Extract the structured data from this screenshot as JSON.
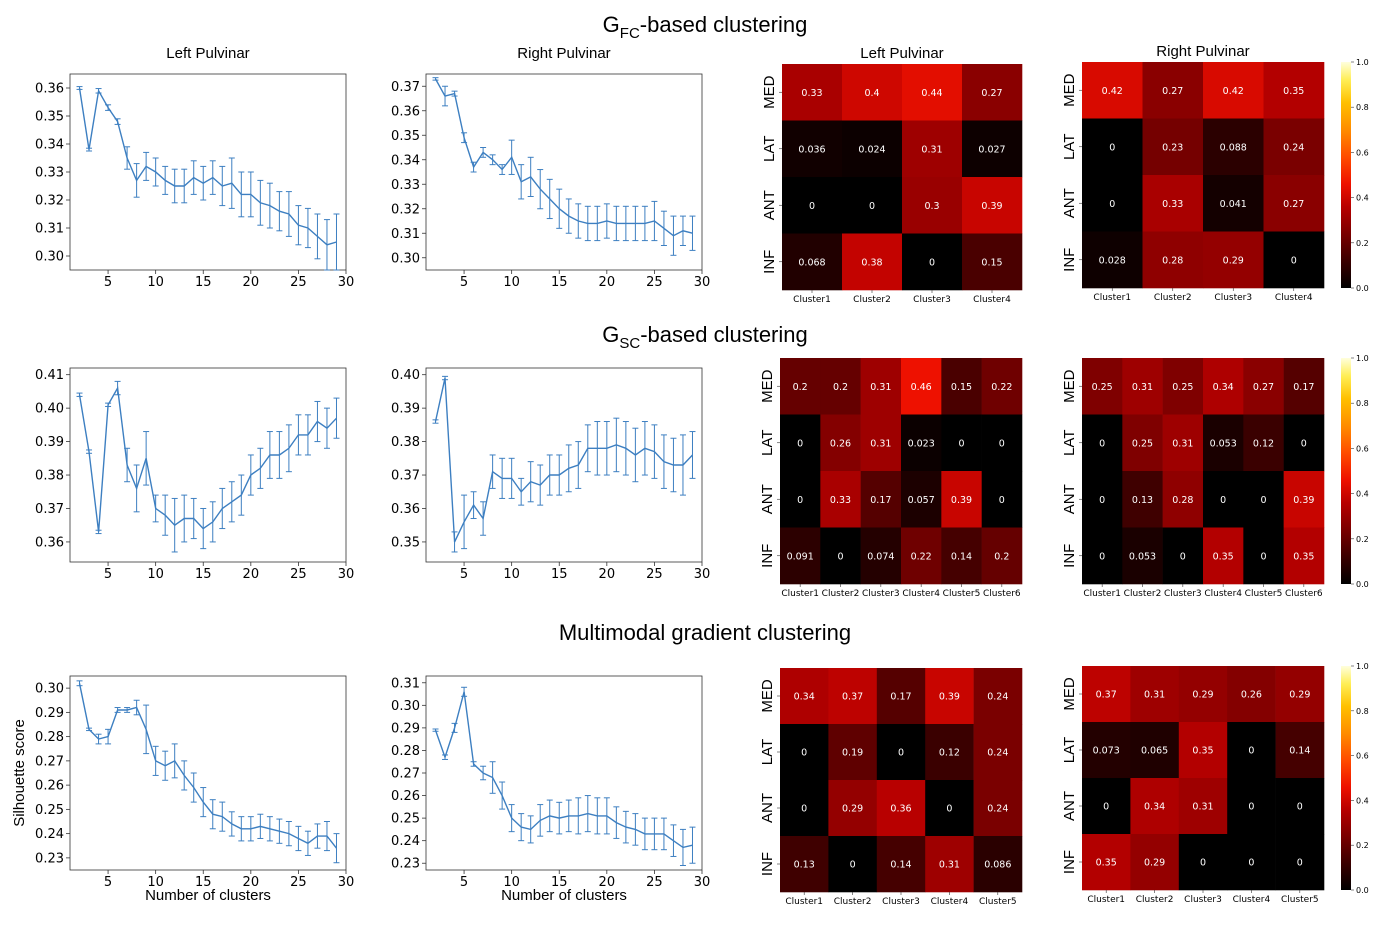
{
  "colors": {
    "line": "#3d7fc1",
    "cbar": [
      "#000000",
      "#3a0000",
      "#7a0000",
      "#b80000",
      "#ee1100",
      "#ff4c00",
      "#ff8c00",
      "#ffc000",
      "#ffee55",
      "#ffffdd"
    ]
  },
  "rows": [
    {
      "title_main": "G",
      "title_sub": "FC",
      "title_rest": "-based clustering"
    },
    {
      "title_main": "G",
      "title_sub": "SC",
      "title_rest": "-based clustering"
    },
    {
      "title_main": "Multimodal gradient clustering",
      "title_sub": "",
      "title_rest": ""
    }
  ],
  "chart_data": [
    {
      "type": "line",
      "title": "Left Pulvinar",
      "xlabel": "",
      "ylabel": "",
      "xlim": [
        1,
        30
      ],
      "ylim": [
        0.295,
        0.365
      ],
      "xticks": [
        "5",
        "10",
        "15",
        "20",
        "25",
        "30"
      ],
      "yticks": [
        "0.30",
        "0.31",
        "0.32",
        "0.33",
        "0.34",
        "0.35",
        "0.36"
      ],
      "x": [
        2,
        3,
        4,
        5,
        6,
        7,
        8,
        9,
        10,
        11,
        12,
        13,
        14,
        15,
        16,
        17,
        18,
        19,
        20,
        21,
        22,
        23,
        24,
        25,
        26,
        27,
        28,
        29
      ],
      "y": [
        0.36,
        0.338,
        0.359,
        0.353,
        0.348,
        0.335,
        0.327,
        0.332,
        0.33,
        0.327,
        0.325,
        0.325,
        0.328,
        0.326,
        0.328,
        0.325,
        0.326,
        0.322,
        0.322,
        0.319,
        0.318,
        0.316,
        0.315,
        0.311,
        0.31,
        0.307,
        0.304,
        0.305
      ],
      "err": [
        0.0005,
        0.0005,
        0.0008,
        0.001,
        0.001,
        0.004,
        0.006,
        0.005,
        0.005,
        0.005,
        0.006,
        0.006,
        0.006,
        0.006,
        0.006,
        0.007,
        0.009,
        0.008,
        0.008,
        0.008,
        0.008,
        0.007,
        0.008,
        0.007,
        0.007,
        0.008,
        0.009,
        0.01
      ]
    },
    {
      "type": "line",
      "title": "Right Pulvinar",
      "xlabel": "",
      "ylabel": "",
      "xlim": [
        1,
        30
      ],
      "ylim": [
        0.295,
        0.375
      ],
      "xticks": [
        "5",
        "10",
        "15",
        "20",
        "25",
        "30"
      ],
      "yticks": [
        "0.30",
        "0.31",
        "0.32",
        "0.33",
        "0.34",
        "0.35",
        "0.36",
        "0.37"
      ],
      "x": [
        2,
        3,
        4,
        5,
        6,
        7,
        8,
        9,
        10,
        11,
        12,
        13,
        14,
        15,
        16,
        17,
        18,
        19,
        20,
        21,
        22,
        23,
        24,
        25,
        26,
        27,
        28,
        29
      ],
      "y": [
        0.373,
        0.366,
        0.367,
        0.349,
        0.337,
        0.343,
        0.34,
        0.336,
        0.341,
        0.331,
        0.333,
        0.328,
        0.324,
        0.32,
        0.317,
        0.315,
        0.314,
        0.314,
        0.315,
        0.314,
        0.314,
        0.314,
        0.314,
        0.315,
        0.312,
        0.309,
        0.311,
        0.31
      ],
      "err": [
        0.0005,
        0.004,
        0.001,
        0.002,
        0.002,
        0.002,
        0.002,
        0.002,
        0.007,
        0.007,
        0.008,
        0.008,
        0.008,
        0.008,
        0.007,
        0.007,
        0.007,
        0.007,
        0.007,
        0.007,
        0.007,
        0.007,
        0.007,
        0.008,
        0.007,
        0.008,
        0.006,
        0.007
      ]
    },
    {
      "type": "heatmap",
      "title": "Left Pulvinar",
      "rows": [
        "MED",
        "LAT",
        "ANT",
        "INF"
      ],
      "cols": [
        "Cluster1",
        "Cluster2",
        "Cluster3",
        "Cluster4"
      ],
      "values": [
        [
          0.33,
          0.4,
          0.44,
          0.27
        ],
        [
          0.036,
          0.024,
          0.31,
          0.027
        ],
        [
          0,
          0,
          0.3,
          0.39
        ],
        [
          0.068,
          0.38,
          0,
          0.15
        ]
      ],
      "vmin": 0,
      "vmax": 1
    },
    {
      "type": "heatmap",
      "title": "Right Pulvinar",
      "rows": [
        "MED",
        "LAT",
        "ANT",
        "INF"
      ],
      "cols": [
        "Cluster1",
        "Cluster2",
        "Cluster3",
        "Cluster4"
      ],
      "values": [
        [
          0.42,
          0.27,
          0.42,
          0.35
        ],
        [
          0,
          0.23,
          0.088,
          0.24
        ],
        [
          0,
          0.33,
          0.041,
          0.27
        ],
        [
          0.028,
          0.28,
          0.29,
          0
        ]
      ],
      "vmin": 0,
      "vmax": 1,
      "cbar_ticks": [
        "0.0",
        "0.2",
        "0.4",
        "0.6",
        "0.8",
        "1.0"
      ]
    },
    {
      "type": "line",
      "title": "",
      "xlabel": "",
      "ylabel": "",
      "xlim": [
        1,
        30
      ],
      "ylim": [
        0.354,
        0.412
      ],
      "xticks": [
        "5",
        "10",
        "15",
        "20",
        "25",
        "30"
      ],
      "yticks": [
        "0.36",
        "0.37",
        "0.38",
        "0.39",
        "0.40",
        "0.41"
      ],
      "x": [
        2,
        3,
        4,
        5,
        6,
        7,
        8,
        9,
        10,
        11,
        12,
        13,
        14,
        15,
        16,
        17,
        18,
        19,
        20,
        21,
        22,
        23,
        24,
        25,
        26,
        27,
        28,
        29
      ],
      "y": [
        0.404,
        0.387,
        0.363,
        0.401,
        0.406,
        0.383,
        0.376,
        0.385,
        0.37,
        0.368,
        0.365,
        0.367,
        0.367,
        0.364,
        0.366,
        0.37,
        0.372,
        0.374,
        0.38,
        0.382,
        0.386,
        0.386,
        0.388,
        0.392,
        0.392,
        0.396,
        0.394,
        0.397
      ],
      "err": [
        0.0005,
        0.0005,
        0.0005,
        0.0005,
        0.002,
        0.005,
        0.007,
        0.008,
        0.004,
        0.006,
        0.008,
        0.007,
        0.006,
        0.006,
        0.006,
        0.006,
        0.006,
        0.006,
        0.006,
        0.006,
        0.007,
        0.007,
        0.007,
        0.006,
        0.006,
        0.006,
        0.006,
        0.006
      ]
    },
    {
      "type": "line",
      "title": "",
      "xlabel": "",
      "ylabel": "",
      "xlim": [
        1,
        30
      ],
      "ylim": [
        0.344,
        0.402
      ],
      "xticks": [
        "5",
        "10",
        "15",
        "20",
        "25",
        "30"
      ],
      "yticks": [
        "0.35",
        "0.36",
        "0.37",
        "0.38",
        "0.39",
        "0.40"
      ],
      "x": [
        2,
        3,
        4,
        5,
        6,
        7,
        8,
        9,
        10,
        11,
        12,
        13,
        14,
        15,
        16,
        17,
        18,
        19,
        20,
        21,
        22,
        23,
        24,
        25,
        26,
        27,
        28,
        29
      ],
      "y": [
        0.386,
        0.399,
        0.35,
        0.356,
        0.361,
        0.357,
        0.371,
        0.369,
        0.369,
        0.365,
        0.368,
        0.367,
        0.37,
        0.37,
        0.372,
        0.373,
        0.378,
        0.378,
        0.378,
        0.379,
        0.378,
        0.376,
        0.378,
        0.377,
        0.374,
        0.373,
        0.373,
        0.376
      ],
      "err": [
        0.0005,
        0.0005,
        0.003,
        0.008,
        0.004,
        0.005,
        0.005,
        0.006,
        0.006,
        0.004,
        0.006,
        0.006,
        0.006,
        0.006,
        0.007,
        0.007,
        0.007,
        0.008,
        0.008,
        0.008,
        0.008,
        0.008,
        0.008,
        0.008,
        0.008,
        0.008,
        0.009,
        0.007
      ]
    },
    {
      "type": "heatmap",
      "title": "",
      "rows": [
        "MED",
        "LAT",
        "ANT",
        "INF"
      ],
      "cols": [
        "Cluster1",
        "Cluster2",
        "Cluster3",
        "Cluster4",
        "Cluster5",
        "Cluster6"
      ],
      "values": [
        [
          0.2,
          0.2,
          0.31,
          0.46,
          0.15,
          0.22
        ],
        [
          0,
          0.26,
          0.31,
          0.023,
          0,
          0
        ],
        [
          0,
          0.33,
          0.17,
          0.057,
          0.39,
          0
        ],
        [
          0.091,
          0,
          0.074,
          0.22,
          0.14,
          0.2
        ]
      ],
      "vmin": 0,
      "vmax": 1
    },
    {
      "type": "heatmap",
      "title": "",
      "rows": [
        "MED",
        "LAT",
        "ANT",
        "INF"
      ],
      "cols": [
        "Cluster1",
        "Cluster2",
        "Cluster3",
        "Cluster4",
        "Cluster5",
        "Cluster6"
      ],
      "values": [
        [
          0.25,
          0.31,
          0.25,
          0.34,
          0.27,
          0.17
        ],
        [
          0,
          0.25,
          0.31,
          0.053,
          0.12,
          0
        ],
        [
          0,
          0.13,
          0.28,
          0,
          0,
          0.39
        ],
        [
          0,
          0.053,
          0,
          0.35,
          0,
          0.35
        ]
      ],
      "vmin": 0,
      "vmax": 1,
      "cbar_ticks": [
        "0.0",
        "0.2",
        "0.4",
        "0.6",
        "0.8",
        "1.0"
      ]
    },
    {
      "type": "line",
      "title": "",
      "xlabel": "Number of clusters",
      "ylabel": "Silhouette score",
      "xlim": [
        1,
        30
      ],
      "ylim": [
        0.225,
        0.305
      ],
      "xticks": [
        "5",
        "10",
        "15",
        "20",
        "25",
        "30"
      ],
      "yticks": [
        "0.23",
        "0.24",
        "0.25",
        "0.26",
        "0.27",
        "0.28",
        "0.29",
        "0.30"
      ],
      "x": [
        2,
        3,
        4,
        5,
        6,
        7,
        8,
        9,
        10,
        11,
        12,
        13,
        14,
        15,
        16,
        17,
        18,
        19,
        20,
        21,
        22,
        23,
        24,
        25,
        26,
        27,
        28,
        29
      ],
      "y": [
        0.302,
        0.283,
        0.279,
        0.28,
        0.291,
        0.291,
        0.292,
        0.283,
        0.27,
        0.268,
        0.27,
        0.264,
        0.259,
        0.253,
        0.248,
        0.247,
        0.244,
        0.242,
        0.242,
        0.243,
        0.242,
        0.241,
        0.24,
        0.238,
        0.236,
        0.239,
        0.239,
        0.234
      ],
      "err": [
        0.001,
        0.0005,
        0.002,
        0.003,
        0.001,
        0.001,
        0.003,
        0.01,
        0.006,
        0.006,
        0.007,
        0.006,
        0.006,
        0.006,
        0.006,
        0.006,
        0.005,
        0.005,
        0.005,
        0.005,
        0.005,
        0.005,
        0.005,
        0.005,
        0.005,
        0.005,
        0.006,
        0.006
      ]
    },
    {
      "type": "line",
      "title": "",
      "xlabel": "Number of clusters",
      "ylabel": "",
      "xlim": [
        1,
        30
      ],
      "ylim": [
        0.227,
        0.313
      ],
      "xticks": [
        "5",
        "10",
        "15",
        "20",
        "25",
        "30"
      ],
      "yticks": [
        "0.23",
        "0.24",
        "0.25",
        "0.26",
        "0.27",
        "0.28",
        "0.29",
        "0.30",
        "0.31"
      ],
      "x": [
        2,
        3,
        4,
        5,
        6,
        7,
        8,
        9,
        10,
        11,
        12,
        13,
        14,
        15,
        16,
        17,
        18,
        19,
        20,
        21,
        22,
        23,
        24,
        25,
        26,
        27,
        28,
        29
      ],
      "y": [
        0.289,
        0.277,
        0.29,
        0.306,
        0.274,
        0.27,
        0.268,
        0.26,
        0.25,
        0.246,
        0.245,
        0.249,
        0.251,
        0.25,
        0.251,
        0.251,
        0.252,
        0.251,
        0.251,
        0.248,
        0.246,
        0.245,
        0.243,
        0.243,
        0.243,
        0.24,
        0.237,
        0.238
      ],
      "err": [
        0.0005,
        0.001,
        0.002,
        0.002,
        0.001,
        0.003,
        0.007,
        0.006,
        0.006,
        0.006,
        0.006,
        0.007,
        0.007,
        0.007,
        0.007,
        0.008,
        0.008,
        0.008,
        0.008,
        0.007,
        0.007,
        0.007,
        0.007,
        0.007,
        0.007,
        0.007,
        0.008,
        0.008
      ]
    },
    {
      "type": "heatmap",
      "title": "",
      "rows": [
        "MED",
        "LAT",
        "ANT",
        "INF"
      ],
      "cols": [
        "Cluster1",
        "Cluster2",
        "Cluster3",
        "Cluster4",
        "Cluster5"
      ],
      "values": [
        [
          0.34,
          0.37,
          0.17,
          0.39,
          0.24
        ],
        [
          0,
          0.19,
          0,
          0.12,
          0.24
        ],
        [
          0,
          0.29,
          0.36,
          0,
          0.24
        ],
        [
          0.13,
          0,
          0.14,
          0.31,
          0.086
        ]
      ],
      "vmin": 0,
      "vmax": 1
    },
    {
      "type": "heatmap",
      "title": "",
      "rows": [
        "MED",
        "LAT",
        "ANT",
        "INF"
      ],
      "cols": [
        "Cluster1",
        "Cluster2",
        "Cluster3",
        "Cluster4",
        "Cluster5"
      ],
      "values": [
        [
          0.37,
          0.31,
          0.29,
          0.26,
          0.29
        ],
        [
          0.073,
          0.065,
          0.35,
          0,
          0.14
        ],
        [
          0,
          0.34,
          0.31,
          0,
          0
        ],
        [
          0.35,
          0.29,
          0,
          0,
          0
        ]
      ],
      "vmin": 0,
      "vmax": 1,
      "cbar_ticks": [
        "0.0",
        "0.2",
        "0.4",
        "0.6",
        "0.8",
        "1.0"
      ]
    }
  ]
}
